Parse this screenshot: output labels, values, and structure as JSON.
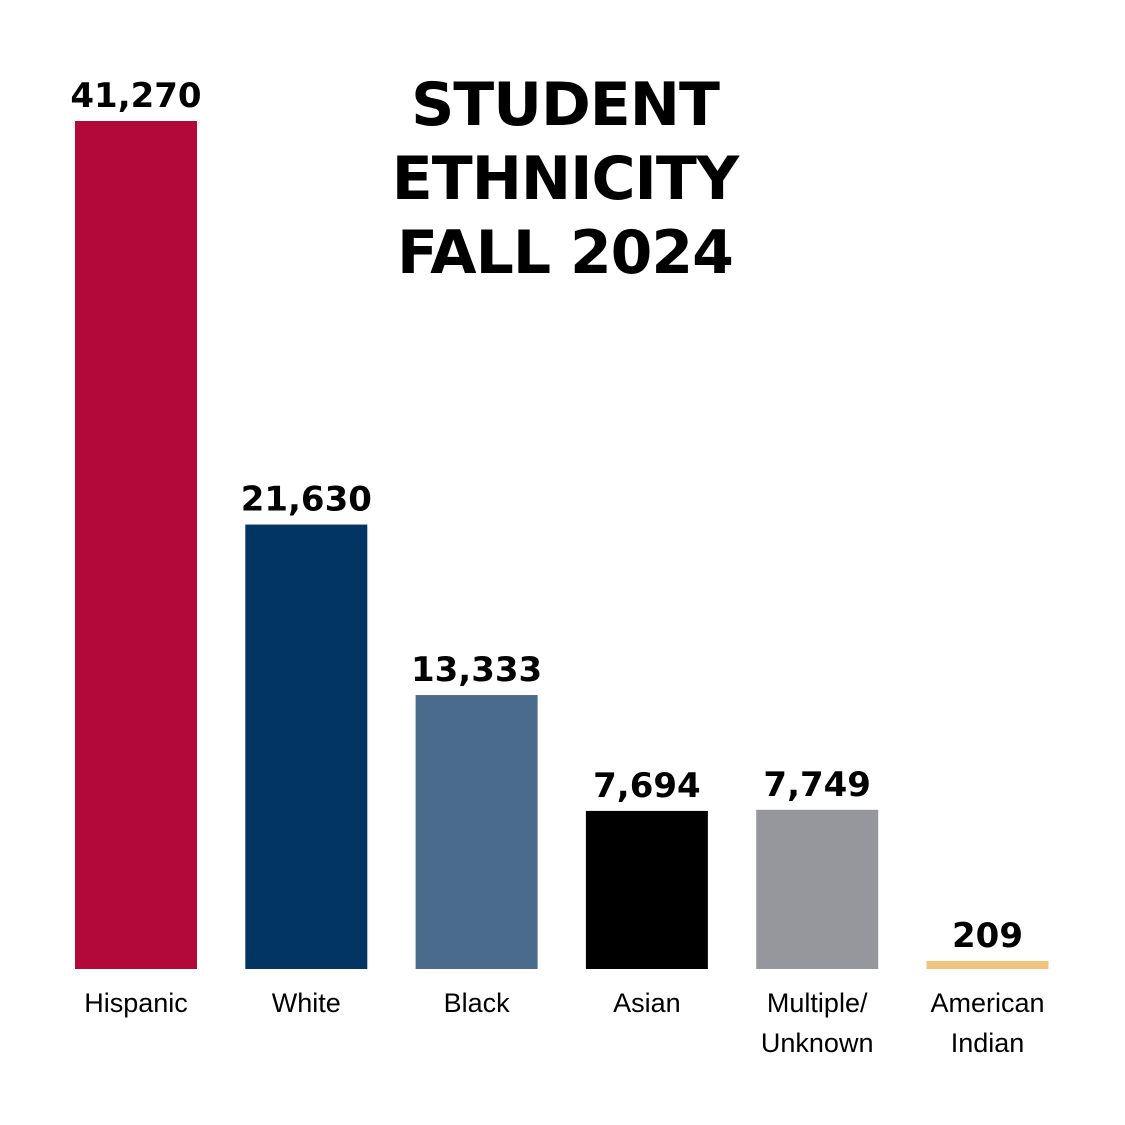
{
  "chart_data": {
    "type": "bar",
    "title_lines": [
      "STUDENT",
      "ETHNICITY",
      "FALL 2024"
    ],
    "categories": [
      [
        "Hispanic"
      ],
      [
        "White"
      ],
      [
        "Black"
      ],
      [
        "Asian"
      ],
      [
        "Multiple/",
        "Unknown"
      ],
      [
        "American",
        "Indian"
      ]
    ],
    "values": [
      41270,
      21630,
      13333,
      7694,
      7749,
      209
    ],
    "value_labels": [
      "41,270",
      "21,630",
      "13,333",
      "7,694",
      "7,749",
      "209"
    ],
    "colors": [
      "#B3093A",
      "#023561",
      "#4A6B8C",
      "#000000",
      "#96979C",
      "#F0C47E"
    ],
    "xlabel": "",
    "ylabel": "",
    "grid": false,
    "axes_visible": false
  }
}
